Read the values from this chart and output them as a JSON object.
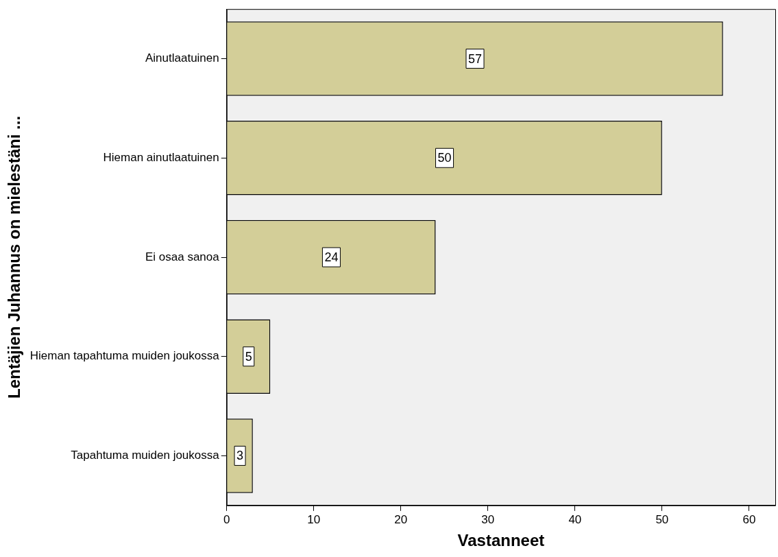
{
  "chart_data": {
    "type": "bar",
    "orientation": "horizontal",
    "xlabel": "Vastanneet",
    "ylabel": "Lentäjien Juhannus on mielestäni ...",
    "categories": [
      "Ainutlaatuinen",
      "Hieman ainutlaatuinen",
      "Ei osaa sanoa",
      "Hieman tapahtuma muiden joukossa",
      "Tapahtuma muiden joukossa"
    ],
    "values": [
      57,
      50,
      24,
      5,
      3
    ],
    "color": "#d3ce98",
    "xlim": [
      0,
      63
    ],
    "xticks": [
      0,
      10,
      20,
      30,
      40,
      50,
      60
    ],
    "data_labels": true,
    "grid": false,
    "legend": false
  }
}
